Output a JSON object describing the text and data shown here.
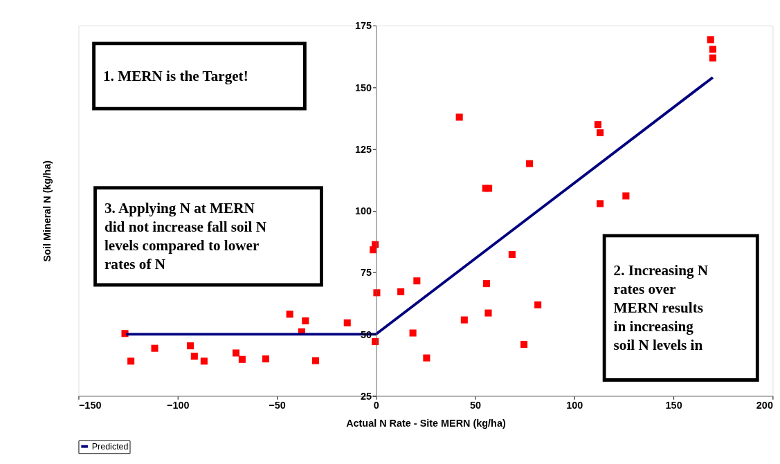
{
  "chart_data": {
    "type": "scatter",
    "xlabel": "Actual N Rate - Site MERN (kg/ha)",
    "ylabel": "Soil Mineral N (kg/ha)",
    "xlim": [
      -150,
      200
    ],
    "xticks": [
      -150,
      -100,
      -50,
      0,
      50,
      100,
      150,
      200
    ],
    "ylim": [
      25,
      175
    ],
    "yticks": [
      25,
      50,
      75,
      100,
      125,
      150,
      175
    ],
    "legend": "bottom",
    "series": [
      {
        "marker": "square",
        "color": "#ff0000",
        "x": [
          -126.6,
          -123.6,
          -111.6,
          -93.6,
          -91.6,
          -86.7,
          -70.6,
          -67.5,
          -55.6,
          -43.5,
          -35.6,
          -37.5,
          -30.5,
          -14.5,
          -0.4,
          0.4,
          -0.4,
          -1.4,
          12.5,
          20.6,
          18.6,
          25.5,
          44.5,
          55.7,
          56.6,
          68.6,
          81.6,
          74.6,
          42.0,
          55.3,
          56.8,
          77.4,
          111.9,
          113.0,
          126.0,
          113.0,
          168.7,
          169.8,
          169.8
        ],
        "values": [
          50.3,
          39.1,
          44.3,
          45.3,
          41.1,
          39.1,
          42.4,
          39.8,
          40.0,
          58.1,
          55.4,
          51.0,
          39.3,
          54.6,
          47.0,
          66.8,
          86.3,
          84.2,
          67.2,
          71.6,
          50.5,
          40.4,
          55.8,
          70.5,
          58.6,
          82.3,
          61.9,
          45.9,
          137.9,
          109.1,
          109.1,
          119.1,
          134.9,
          131.6,
          106.0,
          102.9,
          169.3,
          165.4,
          161.9
        ]
      },
      {
        "type": "line",
        "name": "Predicted",
        "color": "#000080",
        "x": [
          -126,
          0,
          169.8
        ],
        "values": [
          50,
          50,
          154
        ]
      }
    ],
    "annotations": [
      "1. MERN is the Target!",
      "2. Increasing N\nrates over\nMERN results\nin increasing\nsoil N levels in",
      "3. Applying N at MERN\ndid not increase fall soil N\nlevels compared to lower\nrates of N"
    ]
  }
}
